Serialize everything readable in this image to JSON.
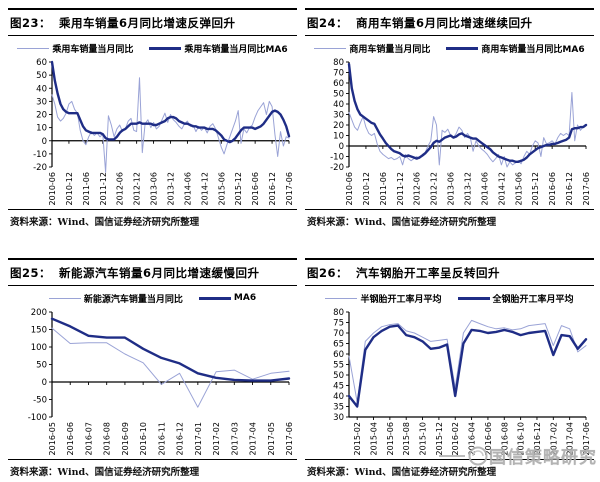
{
  "source_label": "资料来源：Wind、国信证券经济研究所整理",
  "watermark": {
    "text": "国信策略研究",
    "icon": "swirl-circle-logo"
  },
  "colors": {
    "light_line": "#9aa3d6",
    "dark_line": "#1f2d86",
    "axis": "#000000"
  },
  "panels": [
    {
      "fig_label": "图23：",
      "title": "乘用车销量6月同比增速反弹回升",
      "legend": [
        {
          "label": "乘用车销量当月同比",
          "role": "light"
        },
        {
          "label": "乘用车销量当月同比MA6",
          "role": "dark"
        }
      ]
    },
    {
      "fig_label": "图24：",
      "title": "商用车销量6月同比增速继续回升",
      "legend": [
        {
          "label": "商用车销量当月同比",
          "role": "light"
        },
        {
          "label": "商用车销量当月同比MA6",
          "role": "dark"
        }
      ]
    },
    {
      "fig_label": "图25：",
      "title": "新能源汽车销量6月同比增速缓慢回升",
      "legend": [
        {
          "label": "新能源汽车销量当月同比",
          "role": "light"
        },
        {
          "label": "MA6",
          "role": "dark"
        }
      ]
    },
    {
      "fig_label": "图26：",
      "title": "汽车钢胎开工率呈反转回升",
      "legend": [
        {
          "label": "半钢胎开工率月平均",
          "role": "light"
        },
        {
          "label": "全钢胎开工率月平均",
          "role": "dark"
        }
      ]
    }
  ],
  "chart_data": [
    {
      "type": "line",
      "title": "乘用车销量6月同比增速反弹回升",
      "axis": "zero",
      "ylim": [
        -20,
        60
      ],
      "y_ticks": [
        60,
        50,
        40,
        30,
        20,
        10,
        0,
        -10,
        -20
      ],
      "x_labels": [
        "2010-06",
        "2010-12",
        "2011-06",
        "2011-12",
        "2012-06",
        "2012-12",
        "2013-06",
        "2013-12",
        "2014-06",
        "2014-12",
        "2015-06",
        "2015-12",
        "2016-06",
        "2016-12",
        "2017-06"
      ],
      "x_label_at": [
        0,
        6,
        12,
        18,
        24,
        30,
        36,
        42,
        48,
        54,
        60,
        66,
        72,
        78,
        84
      ],
      "series": [
        {
          "name": "乘用车销量当月同比",
          "role": "light",
          "values": [
            35,
            28,
            18,
            15,
            17,
            21,
            28,
            30,
            24,
            21,
            8,
            0,
            -3,
            3,
            7,
            4,
            6,
            3,
            5,
            -24,
            19,
            12,
            3,
            9,
            12,
            7,
            9,
            15,
            17,
            8,
            7,
            48,
            -9,
            13,
            16,
            10,
            14,
            9,
            11,
            16,
            21,
            14,
            20,
            16,
            14,
            11,
            9,
            13,
            15,
            11,
            12,
            7,
            11,
            8,
            10,
            6,
            11,
            13,
            9,
            2,
            -5,
            -10,
            -3,
            3,
            9,
            15,
            23,
            -2,
            9,
            6,
            10,
            12,
            18,
            23,
            26,
            29,
            20,
            30,
            26,
            5,
            -12,
            7,
            -4,
            3,
            2
          ]
        },
        {
          "name": "乘用车销量当月同比MA6",
          "role": "dark",
          "values": [
            60,
            46,
            36,
            28,
            24,
            22,
            21,
            21,
            21,
            21,
            16,
            11,
            8,
            7,
            6,
            6,
            6,
            6,
            5,
            2,
            1,
            1,
            1,
            3,
            6,
            8,
            9,
            11,
            13,
            13,
            13,
            14,
            13,
            13,
            13,
            13,
            12,
            12,
            13,
            14,
            15,
            17,
            18,
            18,
            17,
            15,
            14,
            13,
            13,
            12,
            11,
            11,
            10,
            10,
            10,
            9,
            9,
            9,
            8,
            6,
            4,
            1,
            0,
            -1,
            0,
            2,
            5,
            8,
            10,
            10,
            10,
            10,
            9,
            10,
            11,
            13,
            16,
            19,
            22,
            23,
            22,
            20,
            16,
            11,
            3.5
          ]
        }
      ]
    },
    {
      "type": "line",
      "title": "商用车销量6月同比增速继续回升",
      "axis": "zero",
      "ylim": [
        -20,
        80
      ],
      "y_ticks": [
        80,
        70,
        60,
        50,
        40,
        30,
        20,
        10,
        0,
        -10,
        -20
      ],
      "x_labels": [
        "2010-06",
        "2010-12",
        "2011-06",
        "2011-12",
        "2012-06",
        "2012-12",
        "2013-06",
        "2013-12",
        "2014-06",
        "2014-12",
        "2015-06",
        "2015-12",
        "2016-06",
        "2016-12",
        "2017-06"
      ],
      "x_label_at": [
        0,
        6,
        12,
        18,
        24,
        30,
        36,
        42,
        48,
        54,
        60,
        66,
        72,
        78,
        84
      ],
      "series": [
        {
          "name": "商用车销量当月同比",
          "role": "light",
          "values": [
            32,
            25,
            18,
            15,
            22,
            28,
            18,
            12,
            10,
            12,
            2,
            -5,
            -8,
            -10,
            -12,
            -11,
            -13,
            -12,
            -10,
            -18,
            -8,
            -12,
            -14,
            -12,
            -10,
            -12,
            -8,
            -6,
            0,
            5,
            28,
            20,
            -18,
            15,
            13,
            16,
            10,
            8,
            12,
            18,
            15,
            8,
            12,
            8,
            -5,
            5,
            0,
            -3,
            -5,
            -8,
            -12,
            -15,
            -12,
            -8,
            -18,
            -10,
            -20,
            -15,
            -18,
            -16,
            -14,
            -17,
            -10,
            -5,
            -8,
            0,
            5,
            3,
            -10,
            8,
            2,
            3,
            5,
            2,
            8,
            12,
            10,
            12,
            10,
            51,
            5,
            20,
            15,
            18,
            20
          ]
        },
        {
          "name": "商用车销量当月同比MA6",
          "role": "dark",
          "values": [
            78,
            55,
            43,
            35,
            30,
            28,
            26,
            24,
            22,
            21,
            16,
            11,
            7,
            3,
            0,
            -3,
            -5,
            -6,
            -7,
            -9,
            -10,
            -9,
            -10,
            -11,
            -12,
            -11,
            -9,
            -7,
            -4,
            -1,
            3,
            5,
            4,
            6,
            8,
            9,
            10,
            8,
            9,
            11,
            12,
            10,
            9,
            8,
            7,
            7,
            5,
            3,
            1,
            -1,
            -3,
            -6,
            -8,
            -10,
            -11,
            -12,
            -13,
            -14,
            -14,
            -15,
            -15,
            -14,
            -13,
            -11,
            -8,
            -6,
            -4,
            -2,
            -1,
            0,
            1,
            1,
            2,
            2,
            3,
            4,
            5,
            6,
            8,
            16,
            17,
            17,
            18,
            18,
            20
          ]
        }
      ]
    },
    {
      "type": "line",
      "title": "新能源汽车销量6月同比增速缓慢回升",
      "axis": "zero",
      "ylim": [
        -100,
        200
      ],
      "y_ticks": [
        200,
        150,
        100,
        50,
        0,
        -50,
        -100
      ],
      "x_labels": [
        "2016-05",
        "2016-06",
        "2016-07",
        "2016-08",
        "2016-09",
        "2016-10",
        "2016-11",
        "2016-12",
        "2017-01",
        "2017-02",
        "2017-03",
        "2017-04",
        "2017-05",
        "2017-06"
      ],
      "x_label_at": [
        0,
        1,
        2,
        3,
        4,
        5,
        6,
        7,
        8,
        9,
        10,
        11,
        12,
        13
      ],
      "series": [
        {
          "name": "新能源汽车销量当月同比",
          "role": "light",
          "values": [
            154,
            110,
            112,
            112,
            80,
            55,
            -7,
            25,
            -72,
            29,
            34,
            8,
            25,
            31
          ]
        },
        {
          "name": "MA6",
          "role": "dark",
          "values": [
            181,
            159,
            132,
            127,
            127,
            95,
            69,
            53,
            25,
            12,
            6,
            4,
            4,
            10
          ]
        }
      ]
    },
    {
      "type": "line",
      "title": "汽车钢胎开工率呈反转回升",
      "axis": "bottom",
      "ylim": [
        30,
        80
      ],
      "y_ticks": [
        80,
        75,
        70,
        65,
        60,
        55,
        50,
        45,
        40,
        35,
        30
      ],
      "x_labels": [
        "2015-02",
        "2015-04",
        "2015-06",
        "2015-08",
        "2015-10",
        "2015-12",
        "2016-02",
        "2016-04",
        "2016-06",
        "2016-08",
        "2016-10",
        "2016-12",
        "2017-02",
        "2017-04",
        "2017-06"
      ],
      "x_label_at": [
        1,
        3,
        5,
        7,
        9,
        11,
        13,
        15,
        17,
        19,
        21,
        23,
        25,
        27,
        29
      ],
      "series": [
        {
          "name": "半钢胎开工率月平均",
          "role": "light",
          "values": [
            59,
            37,
            66,
            70,
            73,
            74,
            74.5,
            71,
            70,
            68,
            66,
            66.5,
            67,
            44,
            70,
            76,
            74.5,
            73,
            72,
            72.5,
            71.5,
            72,
            73.5,
            74,
            74.5,
            64,
            73.5,
            72,
            61,
            64
          ]
        },
        {
          "name": "全钢胎开工率月平均",
          "role": "dark",
          "values": [
            40,
            35,
            62,
            68,
            71,
            73,
            73.5,
            69,
            68,
            66,
            62.5,
            63,
            64.5,
            40,
            65,
            71.5,
            71,
            70,
            70.5,
            71.5,
            70.5,
            69,
            70,
            70.5,
            71,
            59.5,
            69,
            68.5,
            62.5,
            67
          ]
        }
      ]
    }
  ]
}
